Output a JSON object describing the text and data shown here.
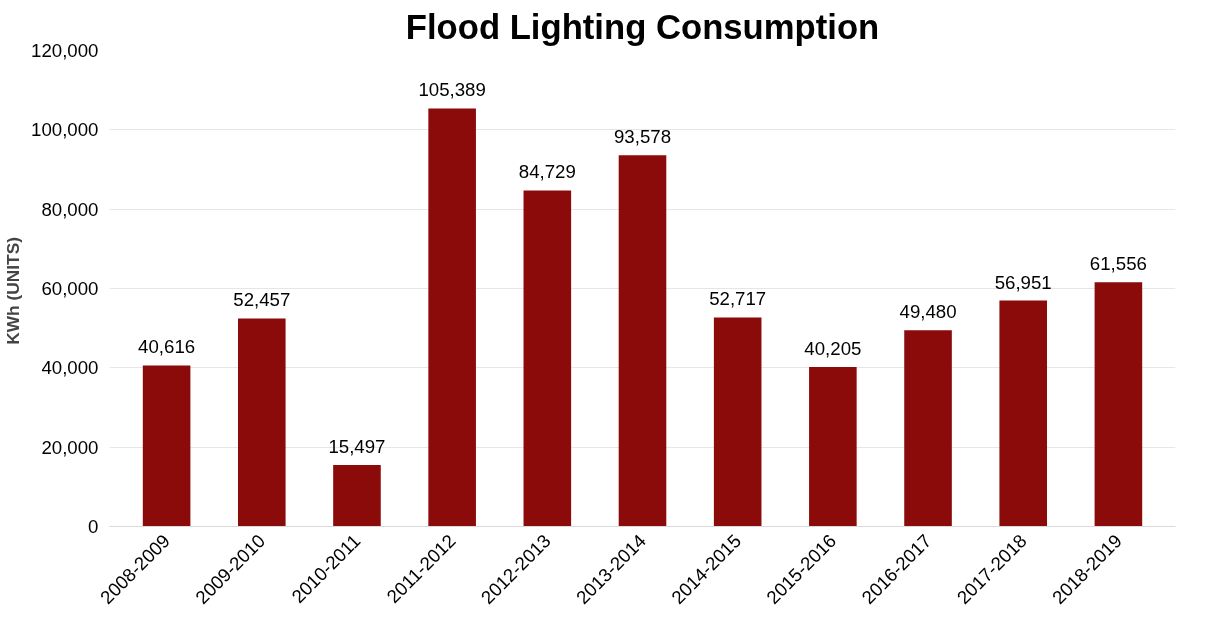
{
  "chart_data": {
    "type": "bar",
    "title": "Flood Lighting Consumption",
    "ylabel": "KWh  (UNITS)",
    "categories": [
      "2008-2009",
      "2009-2010",
      "2010-2011",
      "2011-2012",
      "2012-2013",
      "2013-2014",
      "2014-2015",
      "2015-2016",
      "2016-2017",
      "2017-2018",
      "2018-2019"
    ],
    "values": [
      40616,
      52457,
      15497,
      105389,
      84729,
      93578,
      52717,
      40205,
      49480,
      56951,
      61556
    ],
    "color": "#8b0a0a",
    "ylim": [
      0,
      120000
    ],
    "yticks": [
      0,
      {
        "value": 20000,
        "label": "20,000"
      },
      {
        "value": 40000,
        "label": "40,000"
      },
      {
        "value": 60000,
        "label": "60,000"
      },
      {
        "value": 80000,
        "label": "80,000"
      },
      {
        "value": 100000,
        "label": "100,000"
      },
      {
        "value": 120000,
        "label": "120,000"
      }
    ],
    "value_labels": [
      "40,616",
      "52,457",
      "15,497",
      "105,389",
      "84,729",
      "93,578",
      "52,717",
      "40,205",
      "49,480",
      "56,951",
      "61,556"
    ],
    "grid": "y"
  }
}
